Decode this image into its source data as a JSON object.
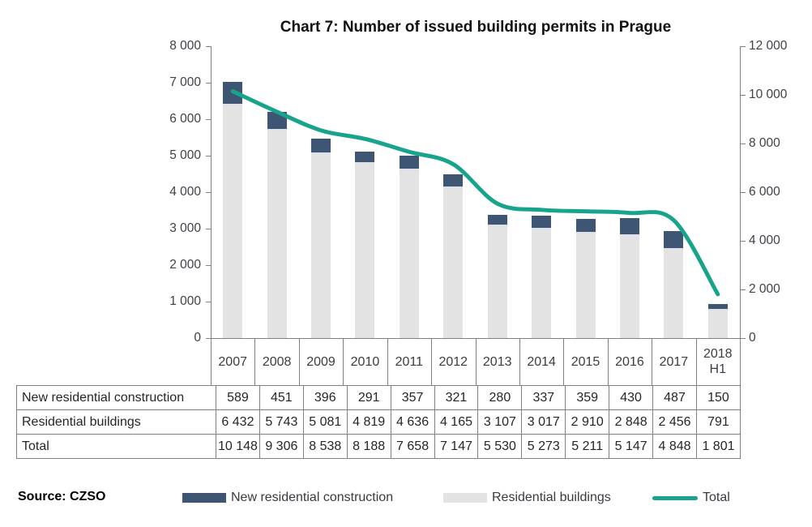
{
  "title": "Chart 7: Number of issued building permits in Prague",
  "source_label": "Source: CZSO",
  "chart_data": {
    "type": "bar",
    "subtype": "stacked-columns-with-smoothed-line",
    "title": "Chart 7: Number of issued building permits in Prague",
    "categories": [
      "2007",
      "2008",
      "2009",
      "2010",
      "2011",
      "2012",
      "2013",
      "2014",
      "2015",
      "2016",
      "2017",
      "2018 H1"
    ],
    "series": [
      {
        "name": "New residential construction",
        "type": "column",
        "stack": "top",
        "axis": "left",
        "color": "#3E5574",
        "values": [
          589,
          451,
          396,
          291,
          357,
          321,
          280,
          337,
          359,
          430,
          487,
          150
        ]
      },
      {
        "name": "Residential buildings",
        "type": "column",
        "stack": "bottom",
        "axis": "left",
        "color": "#E3E3E3",
        "values": [
          6432,
          5743,
          5081,
          4819,
          4636,
          4165,
          3107,
          3017,
          2910,
          2848,
          2456,
          791
        ]
      },
      {
        "name": "Total",
        "type": "line",
        "axis": "right",
        "color": "#18A48C",
        "smooth": true,
        "line_width": 5,
        "values": [
          10148,
          9306,
          8538,
          8188,
          7658,
          7147,
          5530,
          5273,
          5211,
          5147,
          4848,
          1801
        ]
      }
    ],
    "left_axis": {
      "min": 0,
      "max": 8000,
      "step": 1000,
      "tick_labels": [
        "0",
        "1 000",
        "2 000",
        "3 000",
        "4 000",
        "5 000",
        "6 000",
        "7 000",
        "8 000"
      ]
    },
    "right_axis": {
      "min": 0,
      "max": 12000,
      "step": 2000,
      "tick_labels": [
        "0",
        "2 000",
        "4 000",
        "6 000",
        "8 000",
        "10 000",
        "12 000"
      ]
    },
    "grid": false,
    "legend_position": "bottom"
  },
  "table": {
    "rows": [
      {
        "label": "New residential construction",
        "values": [
          "589",
          "451",
          "396",
          "291",
          "357",
          "321",
          "280",
          "337",
          "359",
          "430",
          "487",
          "150"
        ]
      },
      {
        "label": "Residential buildings",
        "values": [
          "6 432",
          "5 743",
          "5 081",
          "4 819",
          "4 636",
          "4 165",
          "3 107",
          "3 017",
          "2 910",
          "2 848",
          "2 456",
          "791"
        ]
      },
      {
        "label": "Total",
        "values": [
          "10 148",
          "9 306",
          "8 538",
          "8 188",
          "7 658",
          "7 147",
          "5 530",
          "5 273",
          "5 211",
          "5 147",
          "4 848",
          "1 801"
        ]
      }
    ]
  },
  "legend": {
    "items": [
      {
        "label": "New residential construction",
        "swatch": "square",
        "color": "#3E5574"
      },
      {
        "label": "Residential buildings",
        "swatch": "square",
        "color": "#E3E3E3"
      },
      {
        "label": "Total",
        "swatch": "line",
        "color": "#18A48C"
      }
    ]
  },
  "colors": {
    "bar_new_residential": "#3E5574",
    "bar_residential_buildings": "#E3E3E3",
    "line_total": "#18A48C",
    "axis": "#808080",
    "axis_text": "#404048",
    "table_border": "#808080",
    "table_text": "#262626",
    "segment_divider": "#DCE0EA"
  }
}
